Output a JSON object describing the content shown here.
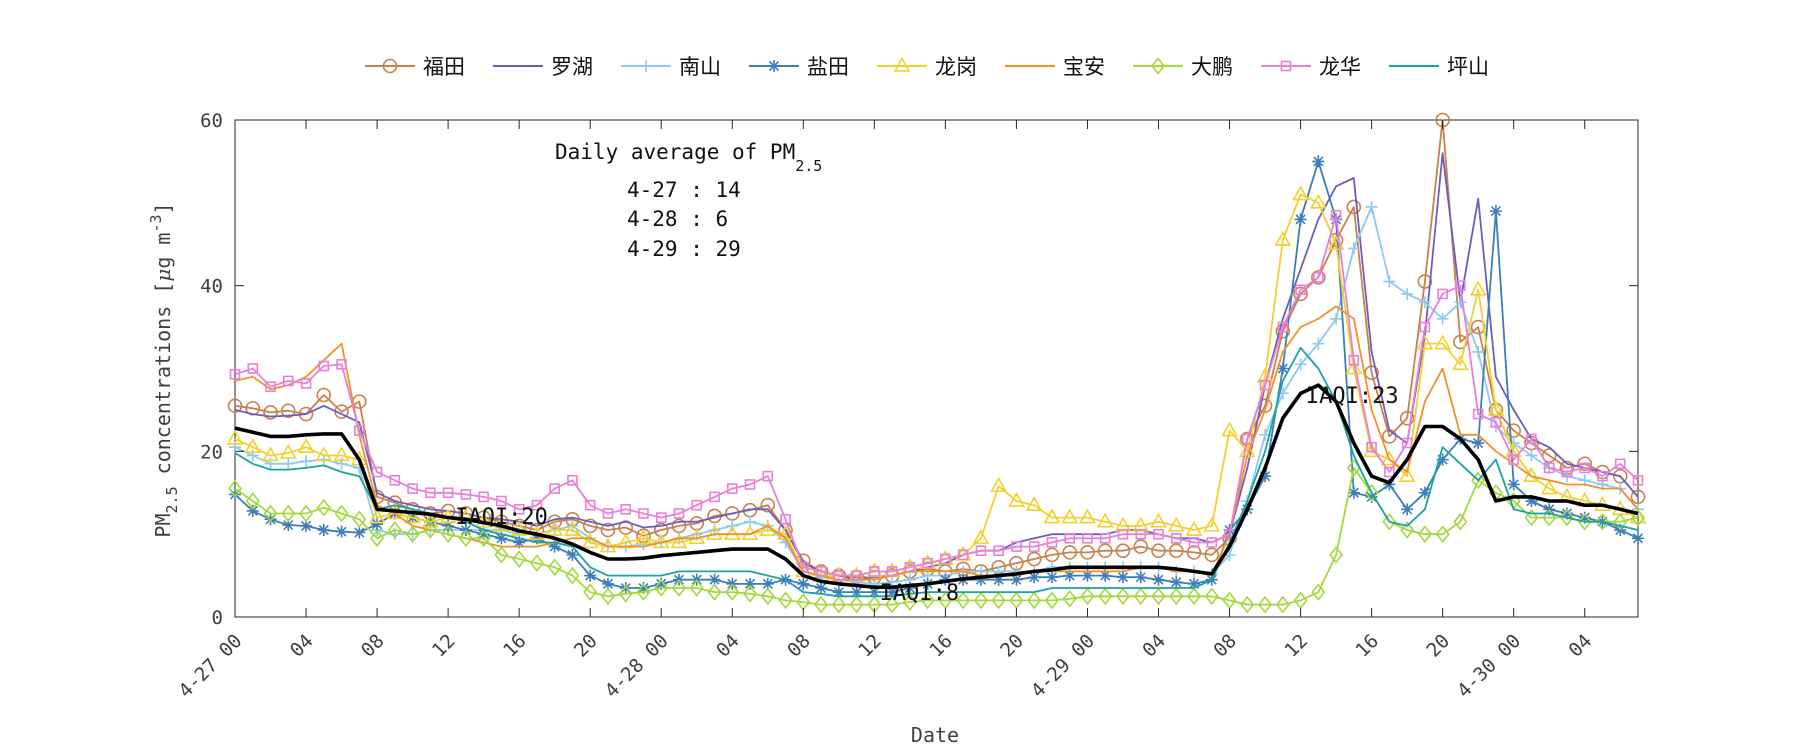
{
  "chart_data": {
    "type": "line",
    "xlabel": "Date",
    "ylabel_main": "PM",
    "ylabel_sub": "2.5",
    "ylabel_rest": " concentrations [",
    "ylabel_mu": "μ",
    "ylabel_unit": "g m",
    "ylabel_sup": "-3",
    "ylabel_end": "]",
    "ylim": [
      0,
      60
    ],
    "xlim": [
      0,
      79
    ],
    "grid": false,
    "legend_position": "top",
    "y_ticks": [
      0,
      20,
      40,
      60
    ],
    "x_ticks": [
      {
        "x": 0,
        "label": "4-27 00"
      },
      {
        "x": 4,
        "label": "04"
      },
      {
        "x": 8,
        "label": "08"
      },
      {
        "x": 12,
        "label": "12"
      },
      {
        "x": 16,
        "label": "16"
      },
      {
        "x": 20,
        "label": "20"
      },
      {
        "x": 24,
        "label": "4-28 00"
      },
      {
        "x": 28,
        "label": "04"
      },
      {
        "x": 32,
        "label": "08"
      },
      {
        "x": 36,
        "label": "12"
      },
      {
        "x": 40,
        "label": "16"
      },
      {
        "x": 44,
        "label": "20"
      },
      {
        "x": 48,
        "label": "4-29 00"
      },
      {
        "x": 52,
        "label": "04"
      },
      {
        "x": 56,
        "label": "08"
      },
      {
        "x": 60,
        "label": "12"
      },
      {
        "x": 64,
        "label": "16"
      },
      {
        "x": 68,
        "label": "20"
      },
      {
        "x": 72,
        "label": "4-30 00"
      },
      {
        "x": 76,
        "label": "04"
      }
    ],
    "annotation": {
      "title_main": "Daily average of PM",
      "title_sub": "2.5",
      "lines": [
        "4-27 : 14",
        "4-28 : 6",
        "4-29 : 29"
      ]
    },
    "iaqi_labels": [
      {
        "text": "IAQI:20",
        "x": 12.4,
        "y": 12.2
      },
      {
        "text": "IAQI:8",
        "x": 36.3,
        "y": 3.0
      },
      {
        "text": "IAQI:23",
        "x": 60.3,
        "y": 26.8
      }
    ],
    "average": {
      "color": "#000000",
      "values": [
        22.8,
        22.3,
        21.8,
        21.8,
        22.0,
        22.1,
        22.1,
        19.0,
        13.0,
        12.8,
        12.6,
        12.4,
        12.0,
        11.8,
        11.4,
        11.0,
        10.4,
        10.0,
        9.5,
        8.8,
        7.8,
        7.0,
        7.0,
        7.1,
        7.4,
        7.6,
        7.8,
        8.0,
        8.2,
        8.2,
        8.2,
        7.0,
        5.0,
        4.3,
        4.0,
        3.8,
        3.6,
        3.6,
        3.8,
        4.0,
        4.3,
        4.6,
        4.8,
        5.0,
        5.2,
        5.5,
        5.7,
        6.0,
        6.0,
        6.0,
        6.0,
        6.0,
        6.0,
        5.8,
        5.5,
        5.2,
        8.5,
        13.0,
        18.0,
        24.0,
        27.0,
        28.0,
        26.0,
        21.0,
        17.0,
        16.2,
        19.0,
        23.0,
        23.0,
        21.5,
        19.0,
        14.0,
        14.5,
        14.5,
        14.0,
        14.0,
        13.5,
        13.5,
        13.0,
        12.5
      ]
    },
    "series": [
      {
        "name": "福田",
        "color": "#c8814a",
        "marker": "circle",
        "values": [
          25.5,
          25.2,
          24.7,
          24.9,
          24.5,
          26.8,
          24.8,
          26.0,
          14.5,
          13.8,
          13.0,
          12.5,
          12.8,
          12.5,
          12.0,
          11.5,
          11.0,
          10.5,
          11.5,
          11.8,
          11.0,
          10.5,
          10.8,
          9.8,
          10.5,
          11.0,
          11.3,
          12.2,
          12.5,
          12.9,
          13.5,
          10.5,
          6.8,
          5.5,
          5.0,
          4.8,
          4.8,
          5.0,
          5.5,
          5.8,
          5.5,
          5.8,
          5.5,
          6.0,
          6.5,
          7.0,
          7.5,
          7.8,
          7.8,
          8.0,
          8.0,
          8.5,
          8.0,
          8.0,
          7.8,
          7.5,
          9.5,
          21.5,
          25.5,
          34.5,
          39.0,
          41.0,
          45.5,
          49.5,
          29.5,
          21.8,
          24.0,
          40.5,
          60.0,
          33.2,
          35.0,
          25.0,
          22.5,
          21.0,
          19.5,
          18.0,
          18.5,
          17.5,
          17.0,
          14.5
        ]
      },
      {
        "name": "罗湖",
        "color": "#6a5fc1",
        "marker": "none",
        "values": [
          25.0,
          24.5,
          24.2,
          24.3,
          24.5,
          25.5,
          24.5,
          23.5,
          15.0,
          14.0,
          13.5,
          13.0,
          12.8,
          12.5,
          12.0,
          11.8,
          11.5,
          11.0,
          11.8,
          12.0,
          11.5,
          11.0,
          11.5,
          10.8,
          11.0,
          11.5,
          11.5,
          12.0,
          12.5,
          13.0,
          13.0,
          10.5,
          6.5,
          5.5,
          5.0,
          4.5,
          4.8,
          5.0,
          5.5,
          6.0,
          6.5,
          7.5,
          8.0,
          8.0,
          9.0,
          9.5,
          10.0,
          10.0,
          10.0,
          10.0,
          10.5,
          10.5,
          10.0,
          9.5,
          9.5,
          9.0,
          10.0,
          18.0,
          28.0,
          36.0,
          42.0,
          48.0,
          52.0,
          53.0,
          32.0,
          22.5,
          21.0,
          34.0,
          56.0,
          38.0,
          50.5,
          29.0,
          25.0,
          21.5,
          20.5,
          18.5,
          18.0,
          17.5,
          17.0,
          14.5
        ]
      },
      {
        "name": "南山",
        "color": "#8ecaf0",
        "marker": "plus",
        "values": [
          20.5,
          19.5,
          18.5,
          18.5,
          18.8,
          19.0,
          18.5,
          18.0,
          10.5,
          10.0,
          10.0,
          10.5,
          10.5,
          10.5,
          10.5,
          10.5,
          10.0,
          10.0,
          10.5,
          11.0,
          9.5,
          8.5,
          8.5,
          8.8,
          9.0,
          9.5,
          10.0,
          10.5,
          11.0,
          11.5,
          11.0,
          9.0,
          5.5,
          4.8,
          4.5,
          4.2,
          4.0,
          4.2,
          4.5,
          5.0,
          5.0,
          5.5,
          5.5,
          5.5,
          5.5,
          5.5,
          6.0,
          6.0,
          6.0,
          6.0,
          6.0,
          6.0,
          6.0,
          5.5,
          5.5,
          5.2,
          7.5,
          14.0,
          22.0,
          27.0,
          30.5,
          33.0,
          36.0,
          44.5,
          49.5,
          40.5,
          39.0,
          38.0,
          36.0,
          38.0,
          32.0,
          23.0,
          21.0,
          19.5,
          18.0,
          17.0,
          16.5,
          16.0,
          15.5,
          13.0
        ]
      },
      {
        "name": "盐田",
        "color": "#3d7db8",
        "marker": "star",
        "values": [
          14.8,
          12.8,
          11.8,
          11.1,
          11.0,
          10.5,
          10.3,
          10.2,
          11.2,
          12.5,
          12.0,
          11.5,
          11.0,
          10.5,
          10.0,
          9.5,
          9.0,
          9.5,
          8.5,
          7.5,
          5.0,
          4.0,
          3.5,
          3.5,
          4.0,
          4.5,
          4.5,
          4.5,
          4.0,
          4.0,
          4.0,
          4.5,
          4.0,
          3.5,
          3.0,
          3.0,
          3.0,
          3.0,
          3.5,
          4.0,
          4.5,
          4.5,
          4.5,
          4.5,
          4.5,
          4.8,
          4.8,
          5.0,
          5.0,
          5.0,
          4.8,
          4.8,
          4.5,
          4.2,
          4.0,
          4.5,
          10.5,
          13.0,
          17.0,
          30.0,
          48.0,
          55.0,
          48.0,
          15.0,
          14.5,
          16.0,
          13.0,
          15.0,
          19.0,
          21.5,
          21.0,
          49.0,
          16.0,
          14.0,
          13.0,
          12.5,
          12.0,
          11.5,
          10.5,
          9.5
        ]
      },
      {
        "name": "龙岗",
        "color": "#f2d12a",
        "marker": "triangle",
        "values": [
          21.5,
          20.5,
          19.5,
          19.8,
          20.5,
          19.5,
          19.5,
          19.0,
          12.0,
          12.5,
          12.0,
          11.5,
          12.0,
          12.0,
          11.5,
          11.0,
          10.5,
          10.0,
          10.5,
          10.5,
          9.0,
          8.5,
          9.0,
          9.5,
          9.0,
          9.0,
          9.5,
          10.0,
          10.0,
          10.0,
          10.5,
          10.0,
          5.5,
          5.0,
          5.0,
          5.0,
          5.5,
          5.5,
          6.0,
          6.5,
          7.0,
          7.5,
          9.5,
          15.8,
          14.0,
          13.5,
          12.0,
          12.0,
          12.0,
          11.5,
          11.0,
          11.0,
          11.5,
          11.0,
          10.5,
          11.0,
          22.5,
          20.0,
          29.0,
          45.5,
          51.0,
          50.0,
          45.0,
          30.0,
          20.0,
          19.0,
          17.0,
          33.0,
          33.0,
          30.5,
          39.5,
          25.0,
          20.0,
          17.0,
          15.5,
          14.5,
          14.0,
          13.5,
          13.0,
          12.0
        ]
      },
      {
        "name": "宝安",
        "color": "#f2912a",
        "marker": "none",
        "values": [
          28.5,
          29.0,
          27.5,
          28.0,
          29.0,
          31.0,
          33.0,
          22.0,
          13.5,
          12.5,
          11.0,
          10.5,
          10.0,
          9.5,
          9.0,
          8.5,
          8.5,
          8.5,
          9.0,
          9.5,
          9.5,
          8.5,
          8.5,
          8.5,
          9.0,
          9.5,
          9.5,
          10.0,
          10.0,
          10.0,
          11.0,
          9.5,
          5.5,
          5.0,
          4.5,
          4.5,
          4.5,
          5.0,
          5.5,
          5.5,
          5.5,
          5.5,
          5.0,
          5.0,
          5.0,
          5.5,
          5.5,
          5.5,
          5.5,
          5.5,
          5.5,
          6.0,
          6.0,
          5.5,
          5.5,
          5.0,
          10.0,
          19.5,
          25.0,
          32.0,
          35.0,
          36.0,
          37.5,
          36.0,
          25.0,
          19.0,
          17.5,
          26.0,
          30.0,
          22.0,
          22.0,
          20.0,
          18.5,
          17.0,
          16.5,
          16.0,
          16.0,
          15.5,
          15.5,
          13.0
        ]
      },
      {
        "name": "大鹏",
        "color": "#a3d93a",
        "marker": "diamond",
        "values": [
          15.5,
          14.0,
          12.5,
          12.5,
          12.5,
          13.2,
          12.5,
          11.8,
          9.5,
          10.5,
          10.0,
          10.5,
          10.0,
          9.5,
          9.5,
          7.5,
          7.0,
          6.5,
          6.0,
          5.0,
          3.0,
          2.5,
          2.8,
          3.0,
          3.5,
          3.5,
          3.5,
          3.0,
          3.0,
          2.8,
          2.5,
          2.0,
          1.8,
          1.5,
          1.5,
          1.5,
          1.5,
          1.5,
          1.8,
          2.0,
          2.0,
          2.0,
          2.0,
          2.0,
          2.0,
          2.0,
          2.0,
          2.2,
          2.5,
          2.5,
          2.5,
          2.5,
          2.5,
          2.5,
          2.5,
          2.5,
          2.0,
          1.5,
          1.5,
          1.5,
          2.0,
          3.0,
          7.5,
          18.0,
          15.0,
          11.5,
          10.5,
          10.0,
          10.0,
          11.5,
          16.5,
          15.0,
          14.0,
          12.0,
          12.0,
          12.0,
          11.5,
          11.5,
          11.5,
          12.0
        ]
      },
      {
        "name": "龙华",
        "color": "#e880d8",
        "marker": "square",
        "values": [
          29.3,
          30.0,
          27.8,
          28.5,
          28.2,
          30.3,
          30.5,
          22.5,
          17.5,
          16.5,
          15.5,
          15.0,
          15.0,
          14.8,
          14.5,
          14.0,
          13.0,
          13.5,
          15.5,
          16.5,
          13.5,
          12.5,
          13.0,
          12.5,
          12.0,
          12.5,
          13.5,
          14.5,
          15.5,
          16.0,
          17.0,
          11.8,
          6.0,
          5.5,
          5.0,
          5.0,
          5.5,
          5.5,
          6.0,
          6.5,
          7.0,
          7.5,
          8.0,
          8.0,
          8.5,
          8.5,
          9.0,
          9.5,
          9.5,
          9.5,
          10.0,
          10.0,
          10.0,
          9.5,
          9.0,
          9.0,
          10.0,
          21.5,
          28.0,
          35.0,
          39.5,
          41.0,
          48.5,
          31.0,
          20.5,
          17.5,
          21.0,
          35.0,
          39.0,
          40.0,
          24.5,
          23.5,
          19.0,
          21.5,
          18.0,
          17.5,
          18.0,
          17.0,
          18.5,
          16.5
        ]
      },
      {
        "name": "坪山",
        "color": "#1aa3a3",
        "marker": "none",
        "values": [
          19.8,
          18.5,
          17.8,
          17.8,
          18.0,
          18.3,
          17.5,
          17.0,
          13.0,
          13.5,
          13.0,
          12.5,
          12.0,
          11.5,
          10.5,
          10.0,
          9.5,
          9.0,
          9.0,
          8.5,
          6.0,
          5.0,
          5.0,
          5.0,
          5.0,
          5.5,
          5.5,
          5.5,
          5.5,
          5.5,
          5.0,
          4.5,
          3.0,
          2.8,
          2.5,
          2.5,
          2.5,
          2.5,
          2.8,
          3.0,
          3.0,
          3.0,
          3.0,
          3.0,
          3.0,
          3.0,
          3.5,
          3.5,
          3.5,
          3.5,
          3.5,
          3.5,
          3.5,
          3.5,
          3.5,
          4.5,
          9.0,
          14.0,
          20.0,
          28.5,
          32.5,
          30.0,
          26.0,
          19.5,
          15.0,
          11.5,
          11.0,
          13.0,
          20.5,
          18.5,
          16.5,
          19.0,
          13.0,
          12.5,
          12.5,
          12.0,
          11.5,
          11.5,
          11.0,
          10.5
        ]
      }
    ]
  }
}
